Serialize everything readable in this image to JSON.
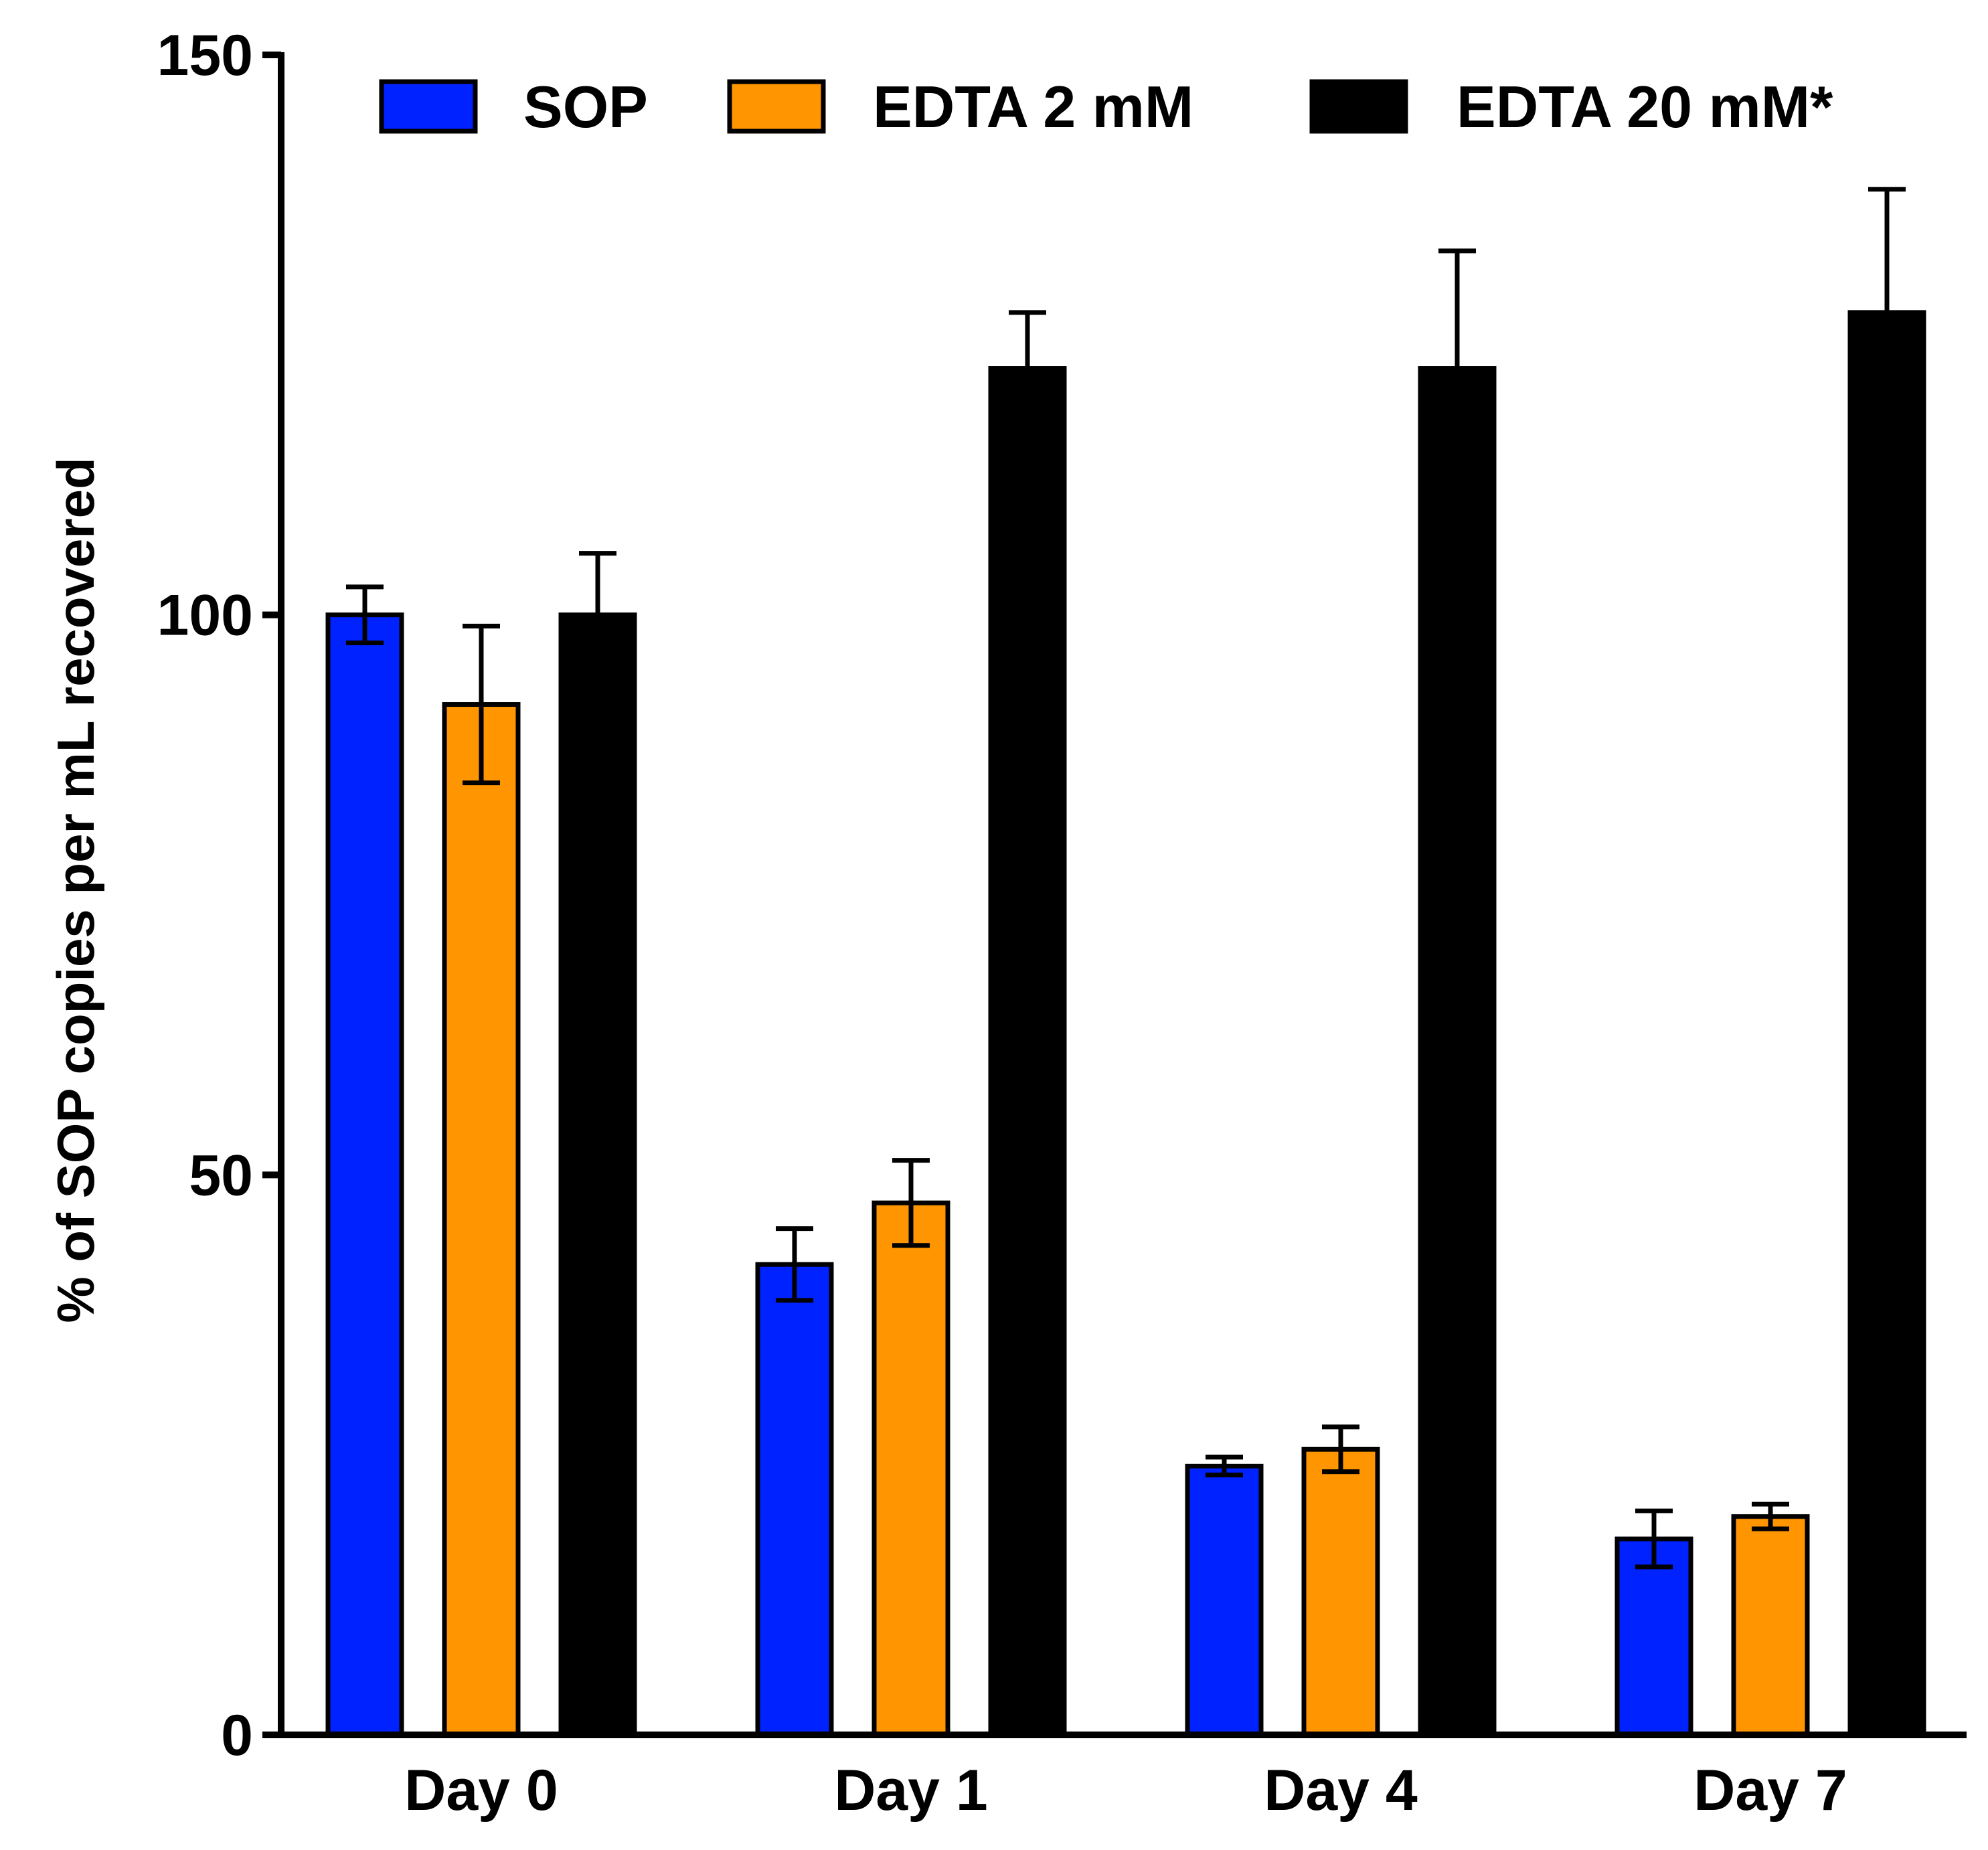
{
  "chart_data": {
    "type": "bar",
    "title": "",
    "xlabel": "",
    "ylabel": "% of SOP copies per mL recovered",
    "ylim": [
      0,
      150
    ],
    "yticks": [
      0,
      50,
      100,
      150
    ],
    "ytick_labels": [
      "0",
      "50",
      "100",
      "150"
    ],
    "grid": false,
    "legend_position": "top",
    "categories": [
      "Day 0",
      "Day 1",
      "Day 4",
      "Day 7"
    ],
    "series": [
      {
        "name": "SOP",
        "color": "#0022ff",
        "values": [
          100,
          42,
          24,
          17.5
        ],
        "errors": [
          2.5,
          3.2,
          0.8,
          2.5
        ]
      },
      {
        "name": "EDTA 2 mM",
        "color": "#ff9500",
        "values": [
          92,
          47.5,
          25.5,
          19.5
        ],
        "errors": [
          7.0,
          3.8,
          2.0,
          1.1
        ]
      },
      {
        "name": "EDTA 20 mM*",
        "color": "#000000",
        "values": [
          100,
          122,
          122,
          127
        ],
        "errors": [
          5.5,
          5.0,
          10.5,
          11.0
        ]
      }
    ]
  }
}
